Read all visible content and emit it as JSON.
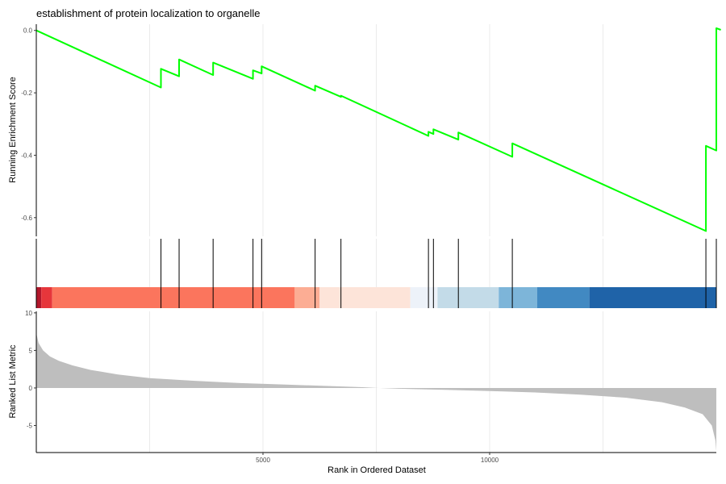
{
  "chart_data": {
    "type": "line",
    "title": "establishment of protein localization to organelle",
    "x_range": [
      0,
      15000
    ],
    "xlabel": "Rank in Ordered Dataset",
    "x_ticks": [
      5000,
      10000
    ],
    "grid": true,
    "panels": {
      "running_score": {
        "ylabel": "Running Enrichment Score",
        "ylim": [
          -0.66,
          0.02
        ],
        "y_ticks": [
          0.0,
          -0.2,
          -0.4,
          -0.6
        ],
        "y_tick_labels": [
          "0.0",
          "-0.2",
          "-0.4",
          "-0.6"
        ],
        "line_color": "#00ff00",
        "points": [
          [
            0,
            0.0
          ],
          [
            2750,
            -0.183
          ],
          [
            2750,
            -0.123
          ],
          [
            3150,
            -0.147
          ],
          [
            3150,
            -0.093
          ],
          [
            3900,
            -0.143
          ],
          [
            3900,
            -0.103
          ],
          [
            4780,
            -0.155
          ],
          [
            4780,
            -0.128
          ],
          [
            4970,
            -0.138
          ],
          [
            4970,
            -0.115
          ],
          [
            6150,
            -0.193
          ],
          [
            6150,
            -0.177
          ],
          [
            6720,
            -0.213
          ],
          [
            6720,
            -0.209
          ],
          [
            8650,
            -0.338
          ],
          [
            8650,
            -0.325
          ],
          [
            8760,
            -0.332
          ],
          [
            8760,
            -0.317
          ],
          [
            9310,
            -0.35
          ],
          [
            9310,
            -0.327
          ],
          [
            10500,
            -0.405
          ],
          [
            10500,
            -0.362
          ],
          [
            14770,
            -0.643
          ],
          [
            14770,
            -0.37
          ],
          [
            15000,
            -0.385
          ],
          [
            15000,
            0.007
          ],
          [
            15100,
            0.002
          ]
        ]
      },
      "gene_hits": {
        "positions": [
          2750,
          3150,
          3900,
          4780,
          4970,
          6150,
          6720,
          8650,
          8760,
          9310,
          10500,
          14770,
          15000
        ]
      },
      "rank_color_bar": {
        "segments": [
          {
            "start": 0,
            "end": 110,
            "color": "#b2182b"
          },
          {
            "start": 110,
            "end": 350,
            "color": "#e6363b"
          },
          {
            "start": 350,
            "end": 5700,
            "color": "#fb755d"
          },
          {
            "start": 5700,
            "end": 6250,
            "color": "#fcad94"
          },
          {
            "start": 6250,
            "end": 8250,
            "color": "#fde4d9"
          },
          {
            "start": 8250,
            "end": 8850,
            "color": "#edf2f9"
          },
          {
            "start": 8850,
            "end": 10200,
            "color": "#c3dbe8"
          },
          {
            "start": 10200,
            "end": 11050,
            "color": "#7db5d9"
          },
          {
            "start": 11050,
            "end": 12200,
            "color": "#4189c2"
          },
          {
            "start": 12200,
            "end": 15000,
            "color": "#1f63a8"
          }
        ]
      },
      "ranked_list_metric": {
        "ylabel": "Ranked List Metric",
        "ylim": [
          -8.6,
          10.2
        ],
        "y_ticks": [
          10,
          5,
          0,
          -5
        ],
        "y_tick_labels": [
          "10",
          "5",
          "0",
          "-5"
        ],
        "fill_color": "#bebebe",
        "curve": [
          [
            0,
            7.3
          ],
          [
            50,
            6.0
          ],
          [
            150,
            5.0
          ],
          [
            300,
            4.2
          ],
          [
            500,
            3.6
          ],
          [
            800,
            3.0
          ],
          [
            1200,
            2.4
          ],
          [
            1800,
            1.8
          ],
          [
            2500,
            1.3
          ],
          [
            3500,
            0.95
          ],
          [
            4500,
            0.65
          ],
          [
            5500,
            0.45
          ],
          [
            6500,
            0.25
          ],
          [
            7200,
            0.1
          ],
          [
            7500,
            0.0
          ],
          [
            8000,
            -0.1
          ],
          [
            9000,
            -0.25
          ],
          [
            10000,
            -0.4
          ],
          [
            11000,
            -0.6
          ],
          [
            12000,
            -0.9
          ],
          [
            13000,
            -1.3
          ],
          [
            13800,
            -1.9
          ],
          [
            14300,
            -2.6
          ],
          [
            14700,
            -3.5
          ],
          [
            14900,
            -5.0
          ],
          [
            14980,
            -7.0
          ],
          [
            15000,
            -8.4
          ]
        ]
      }
    }
  }
}
